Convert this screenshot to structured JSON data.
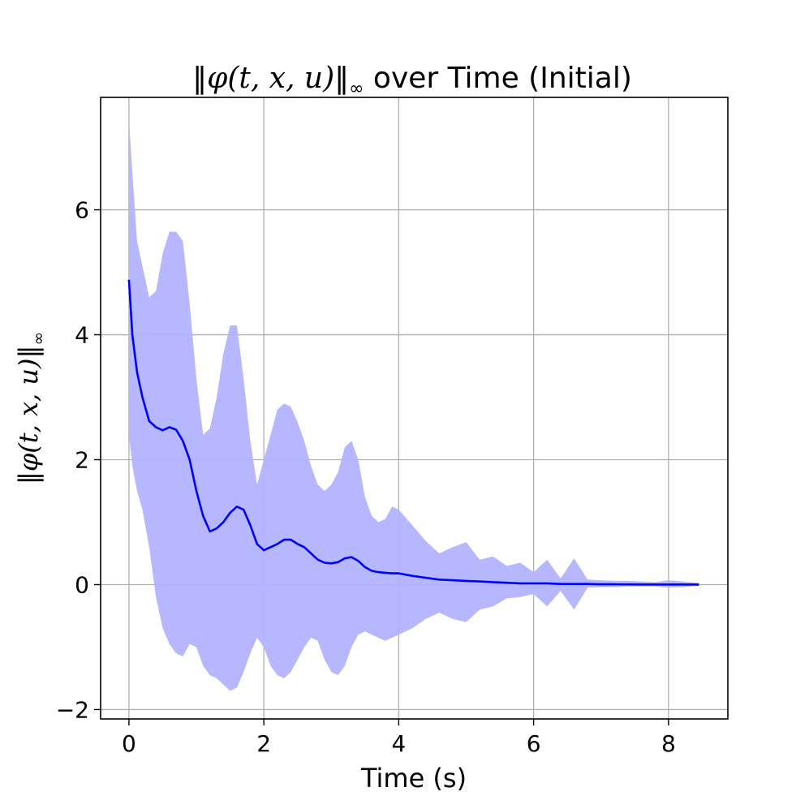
{
  "chart_data": {
    "type": "line",
    "title": "‖φ(t, x, u)‖∞ over Time (Initial)",
    "title_parts": {
      "open": "‖",
      "symbol": "φ",
      "args": "(t, x, u)",
      "close": "‖",
      "subscript": "∞",
      "rest": " over Time (Initial)"
    },
    "xlabel": "Time (s)",
    "ylabel": "‖φ(t, x, u)‖∞",
    "xlim": [
      -0.42,
      8.88
    ],
    "ylim": [
      -2.15,
      7.8
    ],
    "x_ticks": [
      0,
      2,
      4,
      6,
      8
    ],
    "y_ticks": [
      -2,
      0,
      2,
      4,
      6
    ],
    "x_tick_labels": [
      "0",
      "2",
      "4",
      "6",
      "8"
    ],
    "y_tick_labels": [
      "−2",
      "0",
      "2",
      "4",
      "6"
    ],
    "grid": true,
    "legend": "none",
    "colors": {
      "line": "#0000ff",
      "band": "#b3b3ff",
      "grid": "#b0b0b0",
      "axes": "#000000"
    },
    "series": [
      {
        "x": [
          0.0,
          0.05,
          0.12,
          0.2,
          0.3,
          0.4,
          0.5,
          0.6,
          0.7,
          0.8,
          0.9,
          1.0,
          1.1,
          1.2,
          1.3,
          1.4,
          1.5,
          1.6,
          1.7,
          1.8,
          1.9,
          2.0,
          2.1,
          2.2,
          2.3,
          2.4,
          2.5,
          2.6,
          2.7,
          2.8,
          2.9,
          3.0,
          3.1,
          3.2,
          3.3,
          3.4,
          3.5,
          3.6,
          3.7,
          3.8,
          3.9,
          4.0,
          4.2,
          4.4,
          4.6,
          4.8,
          5.0,
          5.2,
          5.4,
          5.6,
          5.8,
          6.0,
          6.2,
          6.4,
          6.6,
          6.8,
          7.0,
          7.2,
          7.4,
          7.6,
          7.8,
          8.0,
          8.2,
          8.45
        ],
        "mean": [
          4.88,
          4.0,
          3.4,
          3.0,
          2.62,
          2.52,
          2.47,
          2.52,
          2.48,
          2.3,
          2.0,
          1.5,
          1.1,
          0.85,
          0.9,
          1.0,
          1.15,
          1.25,
          1.2,
          0.95,
          0.65,
          0.55,
          0.6,
          0.65,
          0.72,
          0.72,
          0.65,
          0.6,
          0.5,
          0.4,
          0.35,
          0.34,
          0.36,
          0.42,
          0.44,
          0.38,
          0.28,
          0.22,
          0.2,
          0.19,
          0.18,
          0.18,
          0.14,
          0.11,
          0.08,
          0.07,
          0.06,
          0.05,
          0.04,
          0.03,
          0.02,
          0.02,
          0.02,
          0.01,
          0.01,
          0.01,
          0.005,
          0.005,
          0.004,
          0.003,
          0.003,
          0.002,
          0.002,
          0.001
        ],
        "upper": [
          7.45,
          6.6,
          5.5,
          5.1,
          4.6,
          4.7,
          5.3,
          5.65,
          5.65,
          5.5,
          4.5,
          3.3,
          2.4,
          2.5,
          3.0,
          3.7,
          4.15,
          4.15,
          3.3,
          2.3,
          1.6,
          2.0,
          2.4,
          2.8,
          2.9,
          2.85,
          2.6,
          2.3,
          1.9,
          1.6,
          1.5,
          1.6,
          1.8,
          2.2,
          2.3,
          2.0,
          1.4,
          1.1,
          1.0,
          1.05,
          1.25,
          1.2,
          0.95,
          0.7,
          0.5,
          0.6,
          0.68,
          0.4,
          0.45,
          0.3,
          0.35,
          0.2,
          0.4,
          0.1,
          0.42,
          0.08,
          0.07,
          0.06,
          0.06,
          0.05,
          0.04,
          0.07,
          0.05,
          0.03
        ],
        "lower": [
          2.4,
          1.9,
          1.5,
          1.2,
          0.6,
          -0.2,
          -0.7,
          -0.95,
          -1.1,
          -1.15,
          -0.95,
          -1.0,
          -1.3,
          -1.45,
          -1.5,
          -1.6,
          -1.7,
          -1.65,
          -1.4,
          -1.1,
          -0.85,
          -1.0,
          -1.3,
          -1.45,
          -1.5,
          -1.4,
          -1.2,
          -1.0,
          -0.85,
          -0.9,
          -1.2,
          -1.4,
          -1.45,
          -1.3,
          -1.0,
          -0.8,
          -0.75,
          -0.8,
          -0.85,
          -0.9,
          -0.85,
          -0.8,
          -0.7,
          -0.55,
          -0.45,
          -0.55,
          -0.6,
          -0.4,
          -0.35,
          -0.22,
          -0.2,
          -0.15,
          -0.35,
          -0.1,
          -0.4,
          -0.05,
          -0.04,
          -0.04,
          -0.03,
          -0.03,
          -0.03,
          -0.05,
          -0.04,
          -0.02
        ]
      }
    ]
  }
}
